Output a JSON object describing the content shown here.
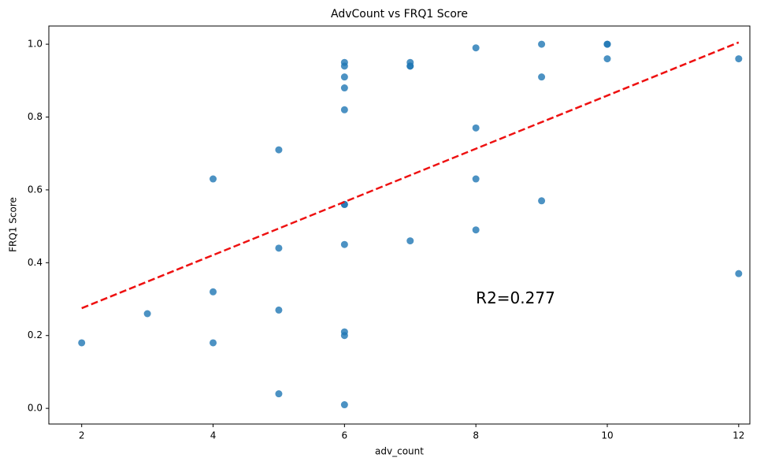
{
  "chart_data": {
    "type": "scatter",
    "title": "AdvCount vs FRQ1 Score",
    "x_label": "adv_count",
    "y_label": "FRQ1 Score",
    "x": [
      2,
      3,
      4,
      4,
      4,
      5,
      5,
      5,
      5,
      6,
      6,
      6,
      6,
      6,
      6,
      6,
      6,
      6,
      6,
      6,
      7,
      7,
      7,
      7,
      8,
      8,
      8,
      8,
      9,
      9,
      9,
      10,
      10,
      10,
      12,
      12
    ],
    "values": [
      0.18,
      0.26,
      0.63,
      0.32,
      0.18,
      0.71,
      0.44,
      0.27,
      0.04,
      0.95,
      0.94,
      0.91,
      0.88,
      0.82,
      0.56,
      0.56,
      0.45,
      0.21,
      0.2,
      0.01,
      0.95,
      0.94,
      0.94,
      0.46,
      0.99,
      0.77,
      0.63,
      0.49,
      1.0,
      0.91,
      0.57,
      1.0,
      1.0,
      0.96,
      0.96,
      0.37
    ],
    "color": "#1f77b4",
    "fit_line": {
      "x": [
        2,
        12
      ],
      "values": [
        0.275,
        1.005
      ],
      "color": "#ee1111"
    },
    "annotation": {
      "text": "R2=0.277",
      "x": 8,
      "y": 0.3
    },
    "xlim": [
      1.5,
      12.17
    ],
    "ylim": [
      -0.043,
      1.05
    ],
    "xticks": [
      2,
      4,
      6,
      8,
      10,
      12
    ],
    "yticks": [
      {
        "value": 0,
        "label": "0.0"
      },
      {
        "value": 0.2,
        "label": "0.2"
      },
      {
        "value": 0.4,
        "label": "0.4"
      },
      {
        "value": 0.6,
        "label": "0.6"
      },
      {
        "value": 0.8,
        "label": "0.8"
      },
      {
        "value": 1.0,
        "label": "1.0"
      }
    ]
  }
}
